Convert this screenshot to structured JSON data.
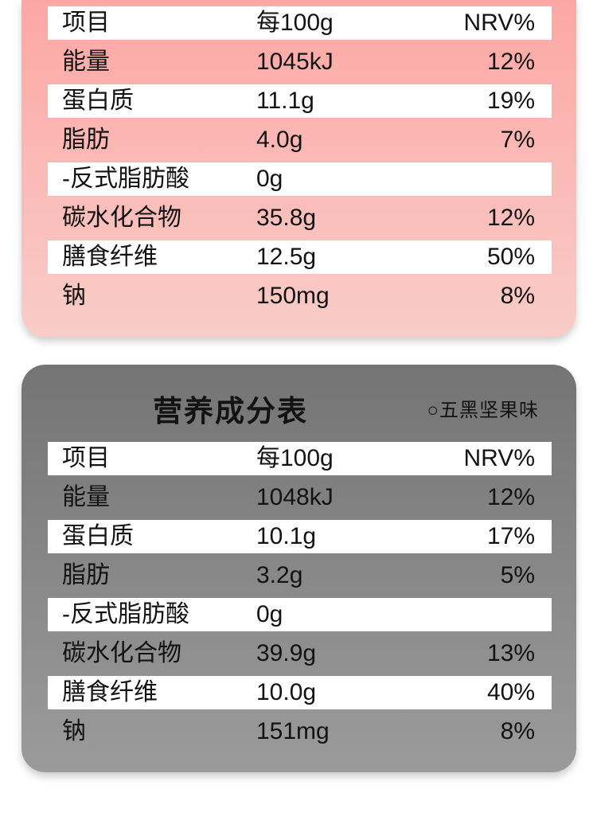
{
  "colors": {
    "pink-top": "#fca7a5",
    "pink-bottom": "#f9ccc7",
    "gray-top": "#747474",
    "gray-bottom": "#9b9b9b",
    "row-white": "#ffffff",
    "text": "#131313"
  },
  "table_pink": {
    "rows": [
      {
        "label": "项目",
        "value": "每100g",
        "nrv": "NRV%"
      },
      {
        "label": "能量",
        "value": "1045kJ",
        "nrv": "12%"
      },
      {
        "label": "蛋白质",
        "value": "11.1g",
        "nrv": "19%"
      },
      {
        "label": "脂肪",
        "value": "4.0g",
        "nrv": "7%"
      },
      {
        "label": "-反式脂肪酸",
        "value": "0g",
        "nrv": ""
      },
      {
        "label": "碳水化合物",
        "value": "35.8g",
        "nrv": "12%"
      },
      {
        "label": "膳食纤维",
        "value": "12.5g",
        "nrv": "50%"
      },
      {
        "label": "钠",
        "value": "150mg",
        "nrv": "8%"
      }
    ]
  },
  "table_gray": {
    "title": "营养成分表",
    "flavor": "○五黑坚果味",
    "rows": [
      {
        "label": "项目",
        "value": "每100g",
        "nrv": "NRV%"
      },
      {
        "label": "能量",
        "value": "1048kJ",
        "nrv": "12%"
      },
      {
        "label": "蛋白质",
        "value": "10.1g",
        "nrv": "17%"
      },
      {
        "label": "脂肪",
        "value": "3.2g",
        "nrv": "5%"
      },
      {
        "label": "-反式脂肪酸",
        "value": "0g",
        "nrv": ""
      },
      {
        "label": "碳水化合物",
        "value": "39.9g",
        "nrv": "13%"
      },
      {
        "label": "膳食纤维",
        "value": "10.0g",
        "nrv": "40%"
      },
      {
        "label": "钠",
        "value": "151mg",
        "nrv": "8%"
      }
    ]
  }
}
